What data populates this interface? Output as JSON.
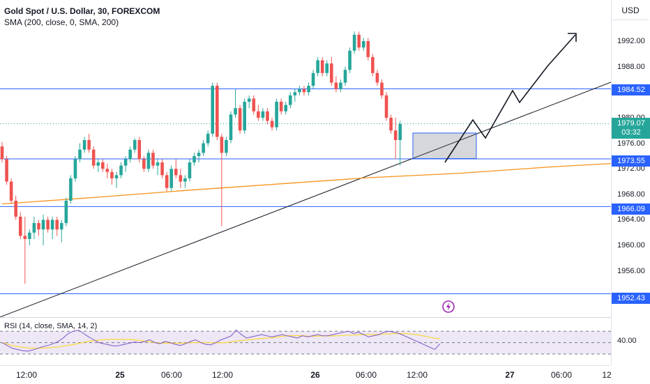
{
  "header": {
    "symbol": "Gold Spot / U.S. Dollar, 30, FOREXCOM",
    "indicator": "SMA (200, close, 0, SMA, 200)"
  },
  "currency_button": "USD",
  "price_ticks": [
    "1992.00",
    "1988.00",
    "1980.00",
    "1976.00",
    "1972.00",
    "1968.00",
    "1964.00",
    "1960.00",
    "1956.00"
  ],
  "price_labels": {
    "line_1984": "1984.52",
    "last_price": "1979.07",
    "countdown": "03:32",
    "line_1973": "1973.55",
    "line_1966": "1966.09",
    "line_1952": "1952.43"
  },
  "rsi": {
    "title": "RSI (14, close, SMA, 14, 2)",
    "scale_value": "40.00"
  },
  "time_labels": [
    {
      "text": "12:00",
      "bold": false
    },
    {
      "text": "25",
      "bold": true
    },
    {
      "text": "06:00",
      "bold": false
    },
    {
      "text": "12:00",
      "bold": false
    },
    {
      "text": "26",
      "bold": true
    },
    {
      "text": "06:00",
      "bold": false
    },
    {
      "text": "12:00",
      "bold": false
    },
    {
      "text": "27",
      "bold": true
    },
    {
      "text": "06:00",
      "bold": false
    },
    {
      "text": "12",
      "bold": false
    }
  ],
  "colors": {
    "up": "#26a69a",
    "down": "#ef5350",
    "sma": "#f7931a",
    "level_line": "#2962ff",
    "rsi_line": "#7e57c2",
    "rsi_ma": "#fdd835",
    "rsi_band": "#ede7f6"
  },
  "chart_data": {
    "type": "candlestick",
    "title": "Gold Spot / U.S. Dollar, 30, FOREXCOM",
    "ylim": [
      1950,
      1996
    ],
    "horizontal_levels": [
      1984.52,
      1973.55,
      1966.09,
      1952.43
    ],
    "last_price": 1979.07,
    "candles": [
      [
        1975.5,
        1976.2,
        1973.0,
        1973.5
      ],
      [
        1973.5,
        1974.0,
        1969.5,
        1970.0
      ],
      [
        1970.0,
        1970.5,
        1966.5,
        1967.0
      ],
      [
        1967.0,
        1967.8,
        1964.0,
        1964.5
      ],
      [
        1964.5,
        1965.2,
        1961.0,
        1961.5
      ],
      [
        1961.5,
        1964.5,
        1954.0,
        1961.0
      ],
      [
        1961.0,
        1962.5,
        1960.0,
        1962.0
      ],
      [
        1962.0,
        1964.5,
        1961.0,
        1963.5
      ],
      [
        1963.5,
        1964.0,
        1961.5,
        1962.5
      ],
      [
        1962.5,
        1964.8,
        1960.0,
        1964.0
      ],
      [
        1964.0,
        1964.5,
        1962.0,
        1962.5
      ],
      [
        1962.5,
        1964.5,
        1961.0,
        1964.0
      ],
      [
        1964.0,
        1964.5,
        1961.5,
        1962.5
      ],
      [
        1962.5,
        1964.0,
        1960.5,
        1963.5
      ],
      [
        1963.5,
        1967.5,
        1963.0,
        1967.0
      ],
      [
        1967.0,
        1971.0,
        1966.5,
        1970.5
      ],
      [
        1970.5,
        1974.0,
        1970.0,
        1973.5
      ],
      [
        1973.5,
        1976.0,
        1973.0,
        1975.0
      ],
      [
        1975.0,
        1977.0,
        1974.5,
        1976.5
      ],
      [
        1976.5,
        1977.5,
        1974.5,
        1975.0
      ],
      [
        1975.0,
        1975.5,
        1972.0,
        1972.5
      ],
      [
        1972.5,
        1973.5,
        1971.5,
        1973.0
      ],
      [
        1973.0,
        1973.5,
        1971.5,
        1972.0
      ],
      [
        1972.0,
        1972.8,
        1970.5,
        1971.5
      ],
      [
        1971.5,
        1972.0,
        1969.5,
        1970.5
      ],
      [
        1970.5,
        1971.5,
        1969.0,
        1971.0
      ],
      [
        1971.0,
        1973.0,
        1970.5,
        1972.5
      ],
      [
        1972.5,
        1974.0,
        1971.5,
        1973.5
      ],
      [
        1973.5,
        1975.5,
        1973.0,
        1975.0
      ],
      [
        1975.0,
        1976.8,
        1974.5,
        1976.5
      ],
      [
        1976.5,
        1977.0,
        1973.0,
        1973.5
      ],
      [
        1973.5,
        1974.0,
        1971.5,
        1972.0
      ],
      [
        1972.0,
        1975.0,
        1971.5,
        1974.5
      ],
      [
        1974.5,
        1975.0,
        1972.0,
        1972.5
      ],
      [
        1972.5,
        1973.5,
        1971.0,
        1973.0
      ],
      [
        1973.0,
        1973.5,
        1970.5,
        1971.0
      ],
      [
        1971.0,
        1971.5,
        1968.5,
        1969.0
      ],
      [
        1969.0,
        1972.5,
        1968.5,
        1972.0
      ],
      [
        1972.0,
        1973.5,
        1970.5,
        1971.0
      ],
      [
        1971.0,
        1972.0,
        1969.0,
        1970.0
      ],
      [
        1970.0,
        1971.0,
        1969.0,
        1970.5
      ],
      [
        1970.5,
        1973.5,
        1970.0,
        1973.0
      ],
      [
        1973.0,
        1974.5,
        1972.5,
        1974.0
      ],
      [
        1974.0,
        1975.0,
        1973.0,
        1974.5
      ],
      [
        1974.5,
        1976.5,
        1974.0,
        1976.0
      ],
      [
        1976.0,
        1978.0,
        1975.5,
        1977.5
      ],
      [
        1977.5,
        1985.5,
        1977.0,
        1985.0
      ],
      [
        1985.0,
        1985.5,
        1976.5,
        1977.0
      ],
      [
        1977.0,
        1977.5,
        1963.0,
        1974.5
      ],
      [
        1974.5,
        1977.0,
        1974.0,
        1976.5
      ],
      [
        1976.5,
        1981.0,
        1976.0,
        1980.5
      ],
      [
        1980.5,
        1984.5,
        1980.0,
        1981.5
      ],
      [
        1981.5,
        1982.0,
        1977.5,
        1978.0
      ],
      [
        1978.0,
        1983.0,
        1977.5,
        1982.5
      ],
      [
        1982.5,
        1983.5,
        1981.5,
        1983.0
      ],
      [
        1983.0,
        1983.5,
        1980.5,
        1981.0
      ],
      [
        1981.0,
        1982.0,
        1979.5,
        1980.0
      ],
      [
        1980.0,
        1981.5,
        1979.5,
        1981.0
      ],
      [
        1981.0,
        1981.5,
        1979.0,
        1979.5
      ],
      [
        1979.5,
        1980.0,
        1978.0,
        1978.5
      ],
      [
        1978.5,
        1983.0,
        1978.0,
        1982.5
      ],
      [
        1982.5,
        1983.0,
        1980.5,
        1981.0
      ],
      [
        1981.0,
        1982.5,
        1980.5,
        1982.0
      ],
      [
        1982.0,
        1984.0,
        1981.5,
        1983.5
      ],
      [
        1983.5,
        1984.5,
        1982.5,
        1984.0
      ],
      [
        1984.0,
        1985.0,
        1983.5,
        1984.5
      ],
      [
        1984.5,
        1985.0,
        1983.5,
        1984.0
      ],
      [
        1984.0,
        1985.5,
        1983.5,
        1985.0
      ],
      [
        1985.0,
        1987.5,
        1984.5,
        1987.0
      ],
      [
        1987.0,
        1989.5,
        1986.5,
        1989.0
      ],
      [
        1989.0,
        1989.5,
        1986.5,
        1987.0
      ],
      [
        1987.0,
        1989.0,
        1986.5,
        1988.5
      ],
      [
        1988.5,
        1989.5,
        1985.0,
        1985.5
      ],
      [
        1985.5,
        1986.5,
        1984.0,
        1984.5
      ],
      [
        1984.5,
        1986.0,
        1984.0,
        1985.5
      ],
      [
        1985.5,
        1988.0,
        1985.0,
        1987.5
      ],
      [
        1987.5,
        1991.0,
        1987.0,
        1990.5
      ],
      [
        1990.5,
        1993.5,
        1990.0,
        1993.0
      ],
      [
        1993.0,
        1993.5,
        1990.5,
        1991.0
      ],
      [
        1991.0,
        1992.5,
        1990.5,
        1992.0
      ],
      [
        1992.0,
        1992.5,
        1989.0,
        1989.5
      ],
      [
        1989.5,
        1990.0,
        1986.5,
        1987.0
      ],
      [
        1987.0,
        1987.5,
        1985.0,
        1985.5
      ],
      [
        1985.5,
        1986.0,
        1983.0,
        1983.5
      ],
      [
        1983.5,
        1984.0,
        1979.5,
        1980.0
      ],
      [
        1980.0,
        1980.5,
        1977.5,
        1978.0
      ],
      [
        1978.0,
        1980.0,
        1973.5,
        1976.5
      ],
      [
        1976.5,
        1979.5,
        1972.5,
        1979.0
      ]
    ],
    "sma_200": [
      [
        0,
        1966.5
      ],
      [
        20,
        1967.5
      ],
      [
        40,
        1968.6
      ],
      [
        60,
        1969.6
      ],
      [
        80,
        1970.6
      ],
      [
        100,
        1971.3
      ],
      [
        120,
        1972.3
      ],
      [
        140,
        1973.1
      ],
      [
        160,
        1974.0
      ],
      [
        175,
        1974.7
      ],
      [
        190,
        1975.3
      ],
      [
        205,
        1976.1
      ],
      [
        210,
        1976.3
      ],
      [
        220,
        1976.5
      ],
      [
        235,
        1976.7
      ],
      [
        245,
        1976.9
      ],
      [
        262,
        1977.2
      ]
    ],
    "rsi_line": [
      50,
      45,
      40,
      38,
      36,
      35,
      37,
      40,
      43,
      45,
      48,
      52,
      58,
      66,
      70,
      72,
      66,
      60,
      55,
      50,
      48,
      46,
      44,
      45,
      47,
      49,
      51,
      50,
      52,
      55,
      50,
      48,
      52,
      50,
      47,
      45,
      48,
      52,
      55,
      50,
      47,
      46,
      50,
      55,
      58,
      62,
      72,
      64,
      58,
      60,
      62,
      64,
      62,
      60,
      62,
      64,
      62,
      60,
      58,
      62,
      60,
      62,
      64,
      62,
      62,
      64,
      66,
      68,
      70,
      66,
      68,
      64,
      60,
      62,
      64,
      68,
      70,
      68,
      66,
      62,
      58,
      54,
      50,
      46,
      42,
      38,
      48
    ]
  }
}
